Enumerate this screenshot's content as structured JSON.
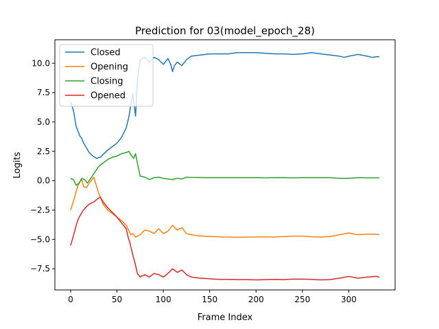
{
  "chart_data": {
    "type": "line",
    "title": "Prediction for 03(model_epoch_28)",
    "xlabel": "Frame Index",
    "ylabel": "Logits",
    "xlim": [
      -17,
      350
    ],
    "ylim": [
      -9.3,
      12.0
    ],
    "xticks": [
      0,
      50,
      100,
      150,
      200,
      250,
      300
    ],
    "yticks": [
      -7.5,
      -5.0,
      -2.5,
      0.0,
      2.5,
      5.0,
      7.5,
      10.0
    ],
    "xtick_labels": [
      "0",
      "50",
      "100",
      "150",
      "200",
      "250",
      "300"
    ],
    "ytick_labels": [
      "−7.5",
      "−5.0",
      "−2.5",
      "0.0",
      "2.5",
      "5.0",
      "7.5",
      "10.0"
    ],
    "grid": false,
    "legend_position": "top-left",
    "series": [
      {
        "name": "Closed",
        "color": "#1f77b4",
        "x": [
          0,
          3,
          6,
          8,
          10,
          12,
          14,
          17,
          20,
          24,
          28,
          32,
          36,
          40,
          45,
          50,
          55,
          60,
          63,
          65,
          67,
          69,
          70,
          72,
          75,
          80,
          85,
          90,
          95,
          100,
          105,
          108,
          110,
          112,
          115,
          120,
          125,
          130,
          140,
          150,
          160,
          170,
          180,
          190,
          200,
          210,
          220,
          230,
          240,
          250,
          260,
          270,
          280,
          290,
          295,
          300,
          310,
          320,
          325,
          330,
          333
        ],
        "y": [
          6.7,
          6.0,
          4.6,
          4.2,
          3.8,
          3.6,
          3.2,
          2.8,
          2.4,
          2.1,
          1.9,
          2.0,
          2.3,
          2.6,
          2.9,
          3.2,
          3.7,
          4.5,
          5.5,
          6.5,
          7.4,
          6.2,
          5.5,
          8.5,
          10.3,
          10.5,
          10.1,
          10.5,
          10.3,
          9.9,
          10.4,
          9.9,
          9.3,
          9.8,
          10.1,
          9.8,
          10.3,
          10.6,
          10.7,
          10.8,
          10.8,
          10.8,
          10.9,
          10.9,
          10.9,
          10.85,
          10.8,
          10.8,
          10.75,
          10.8,
          10.9,
          10.8,
          10.7,
          10.6,
          10.5,
          10.6,
          10.75,
          10.6,
          10.5,
          10.55,
          10.55
        ]
      },
      {
        "name": "Opening",
        "color": "#ff7f0e",
        "x": [
          0,
          2,
          4,
          6,
          8,
          10,
          12,
          14,
          17,
          20,
          25,
          30,
          35,
          40,
          45,
          50,
          55,
          60,
          63,
          65,
          67,
          70,
          75,
          80,
          85,
          90,
          95,
          100,
          105,
          110,
          115,
          120,
          125,
          130,
          140,
          150,
          160,
          170,
          180,
          190,
          200,
          210,
          220,
          230,
          240,
          250,
          260,
          270,
          280,
          290,
          300,
          310,
          320,
          330,
          333
        ],
        "y": [
          -2.5,
          -2.0,
          -1.5,
          -0.9,
          -0.4,
          -0.1,
          0.1,
          -0.5,
          -0.6,
          -0.2,
          0.3,
          -1.0,
          -2.0,
          -2.5,
          -2.8,
          -3.1,
          -3.4,
          -3.8,
          -4.3,
          -4.6,
          -4.5,
          -4.8,
          -4.6,
          -4.2,
          -4.3,
          -4.5,
          -4.1,
          -4.5,
          -4.3,
          -3.8,
          -4.2,
          -4.0,
          -4.5,
          -4.6,
          -4.7,
          -4.75,
          -4.78,
          -4.8,
          -4.82,
          -4.8,
          -4.8,
          -4.78,
          -4.8,
          -4.75,
          -4.72,
          -4.72,
          -4.78,
          -4.8,
          -4.75,
          -4.6,
          -4.45,
          -4.6,
          -4.55,
          -4.55,
          -4.6
        ]
      },
      {
        "name": "Closing",
        "color": "#2ca02c",
        "x": [
          0,
          3,
          6,
          9,
          12,
          15,
          18,
          20,
          25,
          30,
          35,
          40,
          45,
          50,
          55,
          60,
          63,
          65,
          68,
          70,
          72,
          75,
          80,
          85,
          90,
          95,
          100,
          105,
          110,
          115,
          120,
          125,
          130,
          140,
          150,
          160,
          170,
          180,
          190,
          200,
          210,
          220,
          230,
          240,
          250,
          260,
          270,
          280,
          290,
          300,
          310,
          320,
          330,
          333
        ],
        "y": [
          0.2,
          0.1,
          -0.4,
          -0.2,
          0.2,
          0.1,
          -0.2,
          0.0,
          0.6,
          1.2,
          1.5,
          1.8,
          2.0,
          2.1,
          2.3,
          2.4,
          2.5,
          2.2,
          1.9,
          2.3,
          1.5,
          0.4,
          0.3,
          0.1,
          0.25,
          0.3,
          0.2,
          0.15,
          0.1,
          0.2,
          0.15,
          0.3,
          0.28,
          0.27,
          0.26,
          0.25,
          0.25,
          0.26,
          0.25,
          0.25,
          0.24,
          0.25,
          0.25,
          0.24,
          0.25,
          0.26,
          0.26,
          0.25,
          0.2,
          0.2,
          0.25,
          0.24,
          0.24,
          0.25
        ]
      },
      {
        "name": "Opened",
        "color": "#d62728",
        "x": [
          0,
          3,
          6,
          8,
          10,
          13,
          16,
          20,
          25,
          30,
          32,
          35,
          40,
          45,
          50,
          55,
          60,
          62,
          64,
          66,
          68,
          70,
          72,
          75,
          80,
          85,
          90,
          95,
          100,
          105,
          110,
          115,
          120,
          125,
          130,
          140,
          150,
          160,
          170,
          180,
          190,
          200,
          210,
          220,
          230,
          240,
          250,
          260,
          270,
          280,
          290,
          300,
          310,
          320,
          330,
          333
        ],
        "y": [
          -5.5,
          -4.7,
          -3.8,
          -3.3,
          -3.0,
          -2.6,
          -2.3,
          -2.0,
          -1.8,
          -1.5,
          -1.4,
          -1.8,
          -2.3,
          -2.7,
          -3.1,
          -3.6,
          -4.1,
          -4.8,
          -5.3,
          -6.0,
          -6.6,
          -7.2,
          -7.9,
          -8.2,
          -8.0,
          -8.2,
          -7.9,
          -8.0,
          -8.2,
          -7.9,
          -7.5,
          -7.8,
          -7.6,
          -8.0,
          -8.2,
          -8.3,
          -8.35,
          -8.4,
          -8.4,
          -8.42,
          -8.42,
          -8.45,
          -8.42,
          -8.4,
          -8.42,
          -8.38,
          -8.38,
          -8.4,
          -8.45,
          -8.42,
          -8.3,
          -8.15,
          -8.3,
          -8.2,
          -8.15,
          -8.2
        ]
      }
    ]
  }
}
